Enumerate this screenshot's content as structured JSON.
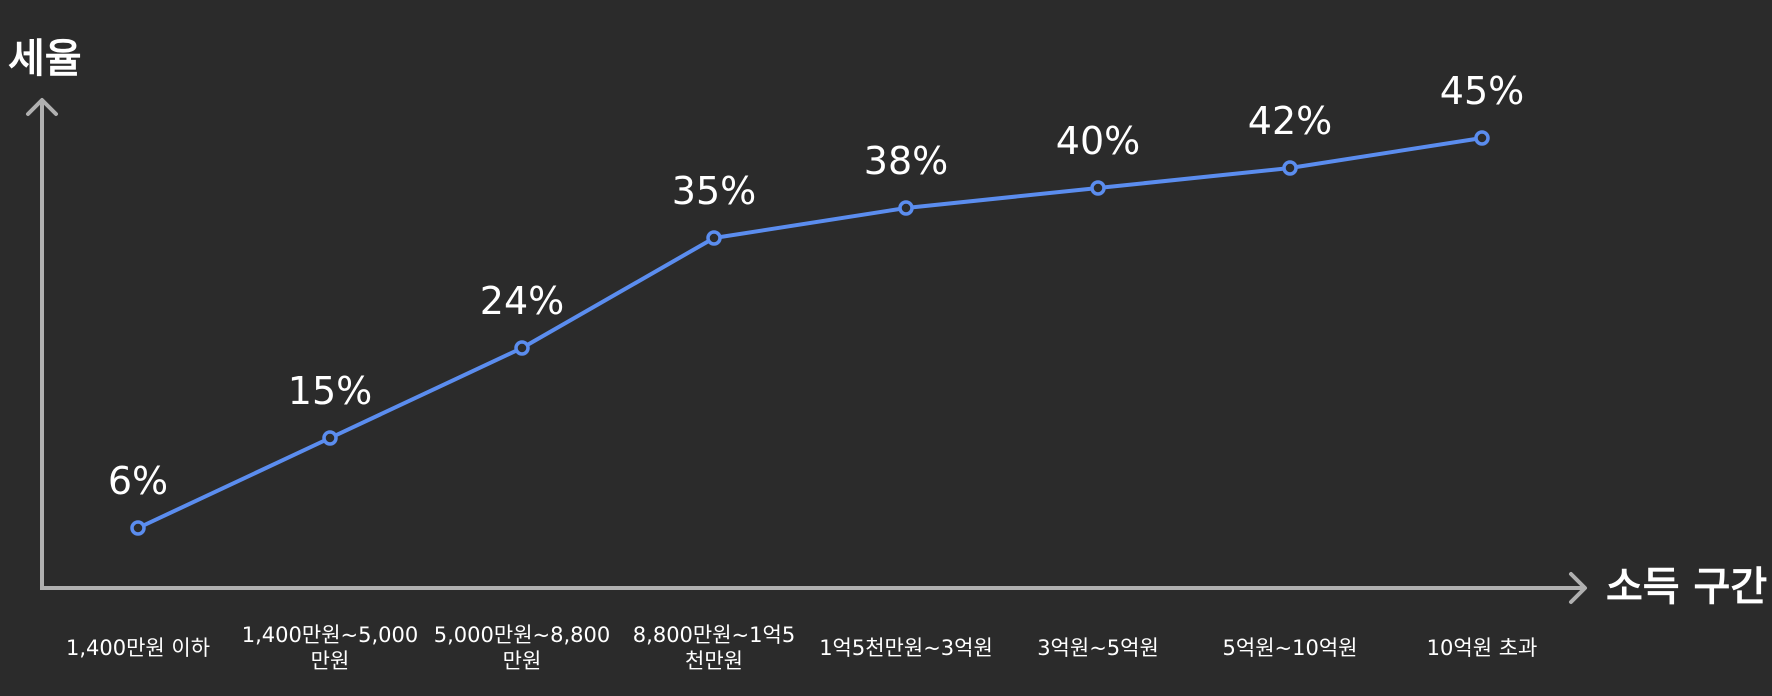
{
  "chart_data": {
    "type": "line",
    "title": "",
    "ylabel": "세율",
    "xlabel": "소득 구간",
    "ylim": [
      0,
      50
    ],
    "grid": false,
    "categories": [
      [
        "1,400만원 이하"
      ],
      [
        "1,400만원~5,000",
        "만원"
      ],
      [
        "5,000만원~8,800",
        "만원"
      ],
      [
        "8,800만원~1억5",
        "천만원"
      ],
      [
        "1억5천만원~3억원"
      ],
      [
        "3억원~5억원"
      ],
      [
        "5억원~10억원"
      ],
      [
        "10억원 초과"
      ]
    ],
    "series": [
      {
        "values": [
          6,
          15,
          24,
          35,
          38,
          40,
          42,
          45
        ],
        "labels": [
          "6%",
          "15%",
          "24%",
          "35%",
          "38%",
          "40%",
          "42%",
          "45%"
        ]
      }
    ],
    "colors": {
      "line": "#5b8def",
      "marker_fill": "#2b2b2b",
      "axis": "#b0b0b0",
      "text": "#ffffff"
    }
  }
}
